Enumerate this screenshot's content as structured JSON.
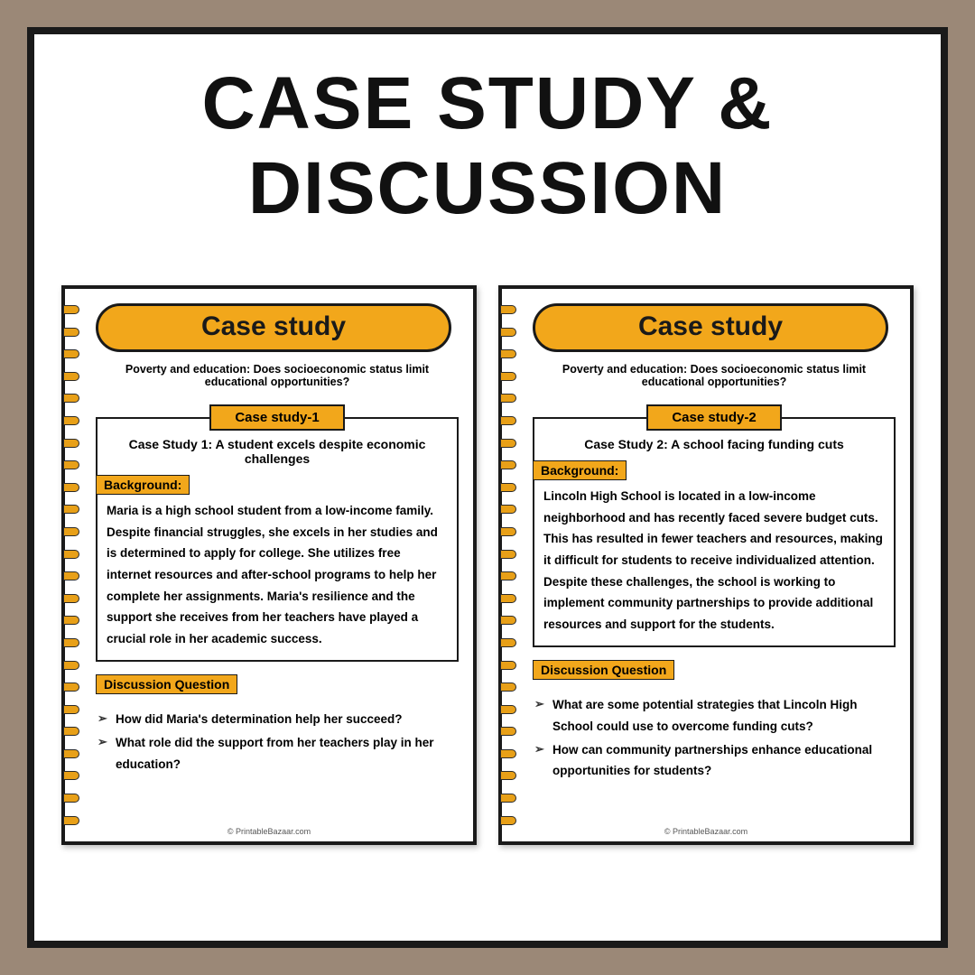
{
  "main_title": "Case study & Discussion",
  "colors": {
    "background": "#9b8877",
    "page_bg": "#ffffff",
    "border": "#1a1a1a",
    "accent": "#f2a71b"
  },
  "spiral_count": 24,
  "pages": [
    {
      "pill_title": "Case study",
      "subtitle": "Poverty and education: Does socioeconomic status limit educational opportunities?",
      "tab": "Case study-1",
      "case_heading": "Case Study 1: A student excels despite economic challenges",
      "bg_label": "Background:",
      "body": "Maria is a high school student from a low-income family. Despite financial struggles, she excels in her studies and is determined to apply for college. She utilizes free internet resources and after-school programs to help her complete her assignments. Maria's resilience and the support she receives from her teachers have played a crucial role in her academic success.",
      "dq_label": "Discussion Question",
      "questions": [
        "How did Maria's determination help her succeed?",
        "What role did the support from her teachers play in her education?"
      ],
      "footer": "© PrintableBazaar.com"
    },
    {
      "pill_title": "Case study",
      "subtitle": "Poverty and education: Does socioeconomic status limit educational opportunities?",
      "tab": "Case study-2",
      "case_heading": "Case Study 2: A school facing funding cuts",
      "bg_label": "Background:",
      "body": "Lincoln High School is located in a low-income neighborhood and has recently faced severe budget cuts. This has resulted in fewer teachers and resources, making it difficult for students to receive individualized attention. Despite these challenges, the school is working to implement community partnerships to provide additional resources and support for the students.",
      "dq_label": "Discussion Question",
      "questions": [
        "What are some potential strategies that Lincoln High School could use to overcome funding cuts?",
        "How can community partnerships enhance educational opportunities for students?"
      ],
      "footer": "© PrintableBazaar.com"
    }
  ]
}
